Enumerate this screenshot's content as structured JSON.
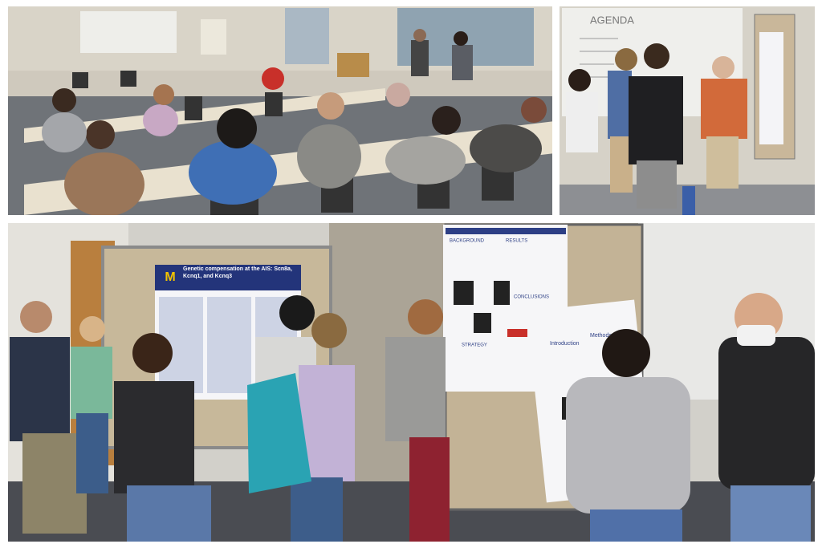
{
  "whiteboard": {
    "heading": "AGENDA"
  },
  "poster": {
    "logo": "M",
    "title": "Genetic compensation at the AIS: Scn8a, Kcnq1, and Kcnq3"
  },
  "poster2": {
    "sections": [
      "BACKGROUND",
      "RESULTS",
      "CONCLUSIONS",
      "STRATEGY"
    ]
  },
  "poster3": {
    "sections": [
      "Introduction",
      "Methods"
    ]
  }
}
